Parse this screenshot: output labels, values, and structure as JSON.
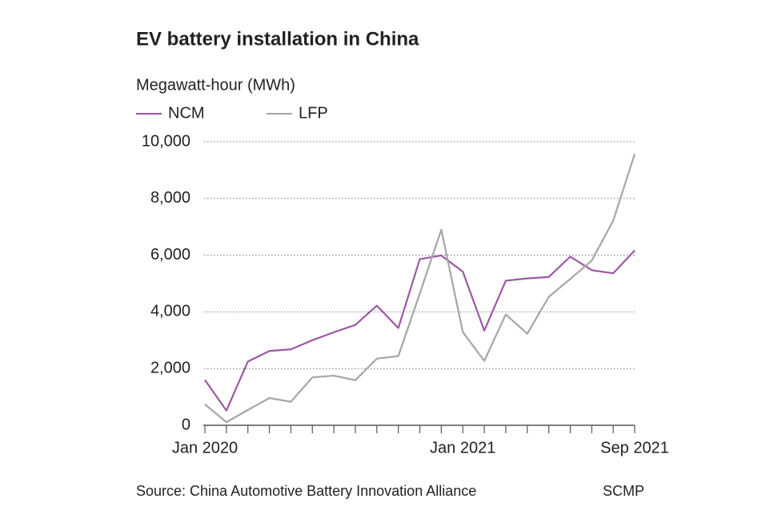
{
  "chart_data": {
    "type": "line",
    "title": "EV battery installation in China",
    "y_label": "Megawatt-hour (MWh)",
    "source": "Source: China Automotive Battery Innovation Alliance",
    "credit": "SCMP",
    "categories": [
      "Jan 2020",
      null,
      null,
      null,
      null,
      null,
      null,
      null,
      null,
      null,
      null,
      null,
      "Jan 2021",
      null,
      null,
      null,
      null,
      null,
      null,
      null,
      "Sep 2021"
    ],
    "series": [
      {
        "name": "NCM",
        "color": "#9b59a3",
        "values": [
          1600,
          520,
          2250,
          2620,
          2680,
          3000,
          3280,
          3540,
          4220,
          3430,
          5860,
          5990,
          5420,
          3340,
          5100,
          5180,
          5230,
          5950,
          5470,
          5360,
          6170
        ]
      },
      {
        "name": "LFP",
        "color": "#a6a6a6",
        "values": [
          740,
          110,
          540,
          960,
          830,
          1690,
          1750,
          1590,
          2350,
          2440,
          4650,
          6900,
          3290,
          2270,
          3910,
          3230,
          4530,
          5160,
          5810,
          7220,
          9570
        ]
      }
    ],
    "ylim": [
      0,
      10000
    ],
    "yticks": [
      0,
      {
        "value": 2000,
        "label": "2,000"
      },
      {
        "value": 4000,
        "label": "4,000"
      },
      {
        "value": 6000,
        "label": "6,000"
      },
      {
        "value": 8000,
        "label": "8,000"
      },
      {
        "value": 10000,
        "label": "10,000"
      }
    ],
    "grid": true
  }
}
